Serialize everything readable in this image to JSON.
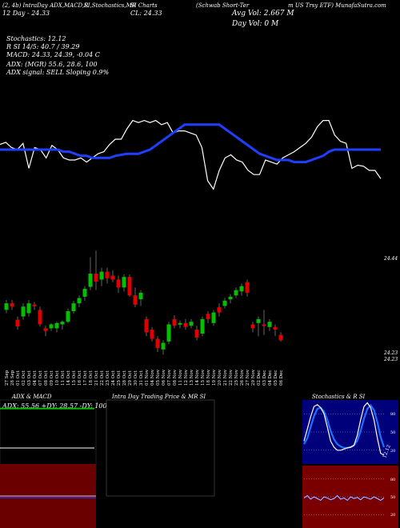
{
  "header": {
    "segments": [
      "(2, 4b) IntraDay ADX,MACD,R",
      "SI,Stochastics,MR",
      "SI Charts",
      "(Schwab Short-Ter",
      "m US Trsy ETF) MunafaSutra.com"
    ],
    "price_line": "12 Day  - 24.33",
    "close_line": "CL: 24.33",
    "avg_vol": "Avg Vol: 2.667 M",
    "day_vol": "Day Vol: 0  M"
  },
  "indicators": {
    "stochastics": "Stochastics: 12.12",
    "rsi": "R                        SI 14/5: 40.7 / 39.29",
    "macd": "MACD: 24.33,  24.39,  -0.04  C",
    "adx": "ADX:                              (MGR) 55.6,  28.6,  100",
    "adx_signal": "ADX  signal: SELL  Sloping  0.9%"
  },
  "price_labels": {
    "top": "24.44",
    "low1": "24.23",
    "low2": "24.23"
  },
  "chart_data": {
    "type": "candlestick",
    "dates": [
      "27 Sep",
      "28 Sep",
      "01 Oct",
      "02 Oct",
      "03 Oct",
      "04 Oct",
      "07 Oct",
      "08 Oct",
      "09 Oct",
      "10 Oct",
      "11 Oct",
      "14 Oct",
      "15 Oct",
      "16 Oct",
      "17 Oct",
      "18 Oct",
      "21 Oct",
      "22 Oct",
      "23 Oct",
      "24 Oct",
      "25 Oct",
      "28 Oct",
      "29 Oct",
      "30 Oct",
      "31 Oct",
      "01 Nov",
      "04 Nov",
      "05 Nov",
      "06 Nov",
      "07 Nov",
      "08 Nov",
      "11 Nov",
      "12 Nov",
      "13 Nov",
      "14 Nov",
      "15 Nov",
      "18 Nov",
      "19 Nov",
      "20 Nov",
      "21 Nov",
      "22 Nov",
      "25 Nov",
      "26 Nov",
      "27 Nov",
      "29 Nov",
      "02 Dec",
      "03 Dec",
      "04 Dec",
      "05 Dec",
      "06 Dec"
    ],
    "candles": [
      {
        "o": 24.34,
        "c": 24.35,
        "h": 24.355,
        "l": 24.335
      },
      {
        "o": 24.35,
        "c": 24.345,
        "h": 24.355,
        "l": 24.34
      },
      {
        "o": 24.325,
        "c": 24.315,
        "h": 24.33,
        "l": 24.31
      },
      {
        "o": 24.33,
        "c": 24.345,
        "h": 24.35,
        "l": 24.325
      },
      {
        "o": 24.335,
        "c": 24.35,
        "h": 24.355,
        "l": 24.33
      },
      {
        "o": 24.348,
        "c": 24.346,
        "h": 24.352,
        "l": 24.34
      },
      {
        "o": 24.34,
        "c": 24.318,
        "h": 24.345,
        "l": 24.315
      },
      {
        "o": 24.312,
        "c": 24.308,
        "h": 24.316,
        "l": 24.3
      },
      {
        "o": 24.312,
        "c": 24.318,
        "h": 24.32,
        "l": 24.308
      },
      {
        "o": 24.312,
        "c": 24.32,
        "h": 24.322,
        "l": 24.306
      },
      {
        "o": 24.318,
        "c": 24.322,
        "h": 24.324,
        "l": 24.31
      },
      {
        "o": 24.322,
        "c": 24.338,
        "h": 24.342,
        "l": 24.32
      },
      {
        "o": 24.338,
        "c": 24.35,
        "h": 24.354,
        "l": 24.334
      },
      {
        "o": 24.35,
        "c": 24.358,
        "h": 24.362,
        "l": 24.344
      },
      {
        "o": 24.36,
        "c": 24.372,
        "h": 24.376,
        "l": 24.354
      },
      {
        "o": 24.375,
        "c": 24.395,
        "h": 24.42,
        "l": 24.37
      },
      {
        "o": 24.395,
        "c": 24.383,
        "h": 24.43,
        "l": 24.37
      },
      {
        "o": 24.386,
        "c": 24.398,
        "h": 24.404,
        "l": 24.376
      },
      {
        "o": 24.398,
        "c": 24.388,
        "h": 24.404,
        "l": 24.38
      },
      {
        "o": 24.392,
        "c": 24.386,
        "h": 24.4,
        "l": 24.382
      },
      {
        "o": 24.386,
        "c": 24.374,
        "h": 24.392,
        "l": 24.366
      },
      {
        "o": 24.374,
        "c": 24.39,
        "h": 24.394,
        "l": 24.368
      },
      {
        "o": 24.39,
        "c": 24.362,
        "h": 24.394,
        "l": 24.36
      },
      {
        "o": 24.362,
        "c": 24.348,
        "h": 24.374,
        "l": 24.344
      },
      {
        "o": 24.356,
        "c": 24.366,
        "h": 24.37,
        "l": 24.346
      },
      {
        "o": 24.326,
        "c": 24.306,
        "h": 24.33,
        "l": 24.3
      },
      {
        "o": 24.31,
        "c": 24.296,
        "h": 24.314,
        "l": 24.292
      },
      {
        "o": 24.296,
        "c": 24.282,
        "h": 24.3,
        "l": 24.276
      },
      {
        "o": 24.28,
        "c": 24.29,
        "h": 24.294,
        "l": 24.272
      },
      {
        "o": 24.292,
        "c": 24.318,
        "h": 24.322,
        "l": 24.288
      },
      {
        "o": 24.326,
        "c": 24.316,
        "h": 24.332,
        "l": 24.312
      },
      {
        "o": 24.318,
        "c": 24.32,
        "h": 24.324,
        "l": 24.312
      },
      {
        "o": 24.32,
        "c": 24.314,
        "h": 24.326,
        "l": 24.31
      },
      {
        "o": 24.316,
        "c": 24.322,
        "h": 24.326,
        "l": 24.312
      },
      {
        "o": 24.31,
        "c": 24.298,
        "h": 24.316,
        "l": 24.294
      },
      {
        "o": 24.304,
        "c": 24.326,
        "h": 24.33,
        "l": 24.3
      },
      {
        "o": 24.334,
        "c": 24.326,
        "h": 24.338,
        "l": 24.32
      },
      {
        "o": 24.32,
        "c": 24.336,
        "h": 24.34,
        "l": 24.316
      },
      {
        "o": 24.344,
        "c": 24.336,
        "h": 24.35,
        "l": 24.33
      },
      {
        "o": 24.346,
        "c": 24.354,
        "h": 24.358,
        "l": 24.342
      },
      {
        "o": 24.356,
        "c": 24.36,
        "h": 24.364,
        "l": 24.35
      },
      {
        "o": 24.362,
        "c": 24.37,
        "h": 24.374,
        "l": 24.358
      },
      {
        "o": 24.368,
        "c": 24.376,
        "h": 24.38,
        "l": 24.362
      },
      {
        "o": 24.382,
        "c": 24.366,
        "h": 24.386,
        "l": 24.36
      },
      {
        "o": 24.318,
        "c": 24.312,
        "h": 24.322,
        "l": 24.306
      },
      {
        "o": 24.32,
        "c": 24.326,
        "h": 24.33,
        "l": 24.3
      },
      {
        "o": 24.318,
        "c": 24.316,
        "h": 24.34,
        "l": 24.302
      },
      {
        "o": 24.314,
        "c": 24.322,
        "h": 24.326,
        "l": 24.308
      },
      {
        "o": 24.314,
        "c": 24.31,
        "h": 24.318,
        "l": 24.3
      },
      {
        "o": 24.302,
        "c": 24.294,
        "h": 24.306,
        "l": 24.292
      }
    ],
    "white_line": [
      0.65,
      0.67,
      0.62,
      0.6,
      0.66,
      0.42,
      0.62,
      0.6,
      0.52,
      0.64,
      0.6,
      0.52,
      0.5,
      0.5,
      0.52,
      0.48,
      0.52,
      0.56,
      0.58,
      0.65,
      0.7,
      0.7,
      0.8,
      0.88,
      0.86,
      0.88,
      0.86,
      0.88,
      0.84,
      0.86,
      0.76,
      0.78,
      0.78,
      0.76,
      0.74,
      0.62,
      0.3,
      0.22,
      0.4,
      0.52,
      0.55,
      0.5,
      0.48,
      0.4,
      0.36,
      0.36,
      0.5,
      0.48,
      0.46,
      0.52,
      0.55,
      0.58,
      0.62,
      0.66,
      0.72,
      0.82,
      0.88,
      0.88,
      0.74,
      0.68,
      0.66,
      0.42,
      0.45,
      0.44,
      0.4,
      0.4,
      0.32
    ],
    "blue_line": [
      0.6,
      0.6,
      0.6,
      0.6,
      0.6,
      0.6,
      0.6,
      0.6,
      0.6,
      0.6,
      0.6,
      0.58,
      0.58,
      0.56,
      0.54,
      0.54,
      0.52,
      0.52,
      0.52,
      0.52,
      0.54,
      0.55,
      0.56,
      0.56,
      0.56,
      0.58,
      0.6,
      0.64,
      0.68,
      0.72,
      0.76,
      0.8,
      0.84,
      0.84,
      0.84,
      0.84,
      0.84,
      0.84,
      0.84,
      0.8,
      0.76,
      0.72,
      0.68,
      0.64,
      0.6,
      0.56,
      0.54,
      0.52,
      0.5,
      0.5,
      0.5,
      0.48,
      0.48,
      0.48,
      0.5,
      0.52,
      0.54,
      0.58,
      0.6,
      0.6,
      0.6,
      0.6,
      0.6,
      0.6,
      0.6,
      0.6,
      0.6
    ]
  },
  "panels": {
    "adx": {
      "title": "ADX  & MACD",
      "values": "ADX: 55.56  +DY: 28.57 -DY: 100",
      "adx_level": 0.95,
      "di_level": 0.28
    },
    "intraday": {
      "title": "Intra  Day Trading Price  & MR                  SI"
    },
    "stoch": {
      "title": "Stochastics & R                   SI",
      "ticks_top": [
        "80",
        "50",
        "20"
      ],
      "ticks_bottom": [
        "80",
        "50",
        "20"
      ],
      "last_label": "12.12",
      "fast": [
        0.35,
        0.55,
        0.75,
        0.92,
        0.95,
        0.9,
        0.8,
        0.58,
        0.35,
        0.25,
        0.2,
        0.2,
        0.22,
        0.24,
        0.25,
        0.28,
        0.45,
        0.7,
        0.92,
        0.98,
        0.9,
        0.7,
        0.4,
        0.15,
        0.12
      ],
      "slow": [
        0.3,
        0.4,
        0.58,
        0.76,
        0.88,
        0.9,
        0.84,
        0.7,
        0.52,
        0.38,
        0.3,
        0.26,
        0.24,
        0.24,
        0.25,
        0.28,
        0.36,
        0.52,
        0.72,
        0.88,
        0.94,
        0.86,
        0.66,
        0.42,
        0.25
      ],
      "rsi": [
        0.48,
        0.52,
        0.46,
        0.5,
        0.47,
        0.44,
        0.5,
        0.48,
        0.45,
        0.47,
        0.52,
        0.46,
        0.48,
        0.44,
        0.5,
        0.47,
        0.49,
        0.45,
        0.5,
        0.48,
        0.46,
        0.5,
        0.47,
        0.44,
        0.48
      ]
    }
  },
  "colors": {
    "up": "#00c000",
    "down": "#e00000",
    "blue": "#1e3fff",
    "white": "#ffffff",
    "red_panel": "#7a0000"
  }
}
